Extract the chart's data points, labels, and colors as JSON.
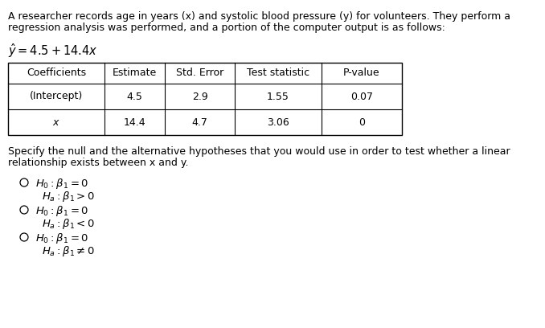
{
  "intro_line1": "A researcher records age in years (x) and systolic blood pressure (y) for volunteers. They perform a",
  "intro_line2": "regression analysis was performed, and a portion of the computer output is as follows:",
  "equation": "$\\hat{y} = 4.5 + 14.4x$",
  "table_headers": [
    "Coefficients",
    "Estimate",
    "Std. Error",
    "Test statistic",
    "P-value"
  ],
  "table_rows": [
    [
      "(Intercept)",
      "4.5",
      "2.9",
      "1.55",
      "0.07"
    ],
    [
      "x",
      "14.4",
      "4.7",
      "3.06",
      "0"
    ]
  ],
  "question_line1": "Specify the null and the alternative hypotheses that you would use in order to test whether a linear",
  "question_line2": "relationship exists between x and y.",
  "choices": [
    [
      "$H_0 : \\beta_1 = 0$",
      "$H_a : \\beta_1 > 0$"
    ],
    [
      "$H_0 : \\beta_1 = 0$",
      "$H_a : \\beta_1 < 0$"
    ],
    [
      "$H_0 : \\beta_1 = 0$",
      "$H_a : \\beta_1 \\neq 0$"
    ]
  ],
  "bg_color": "#ffffff",
  "text_color": "#000000"
}
